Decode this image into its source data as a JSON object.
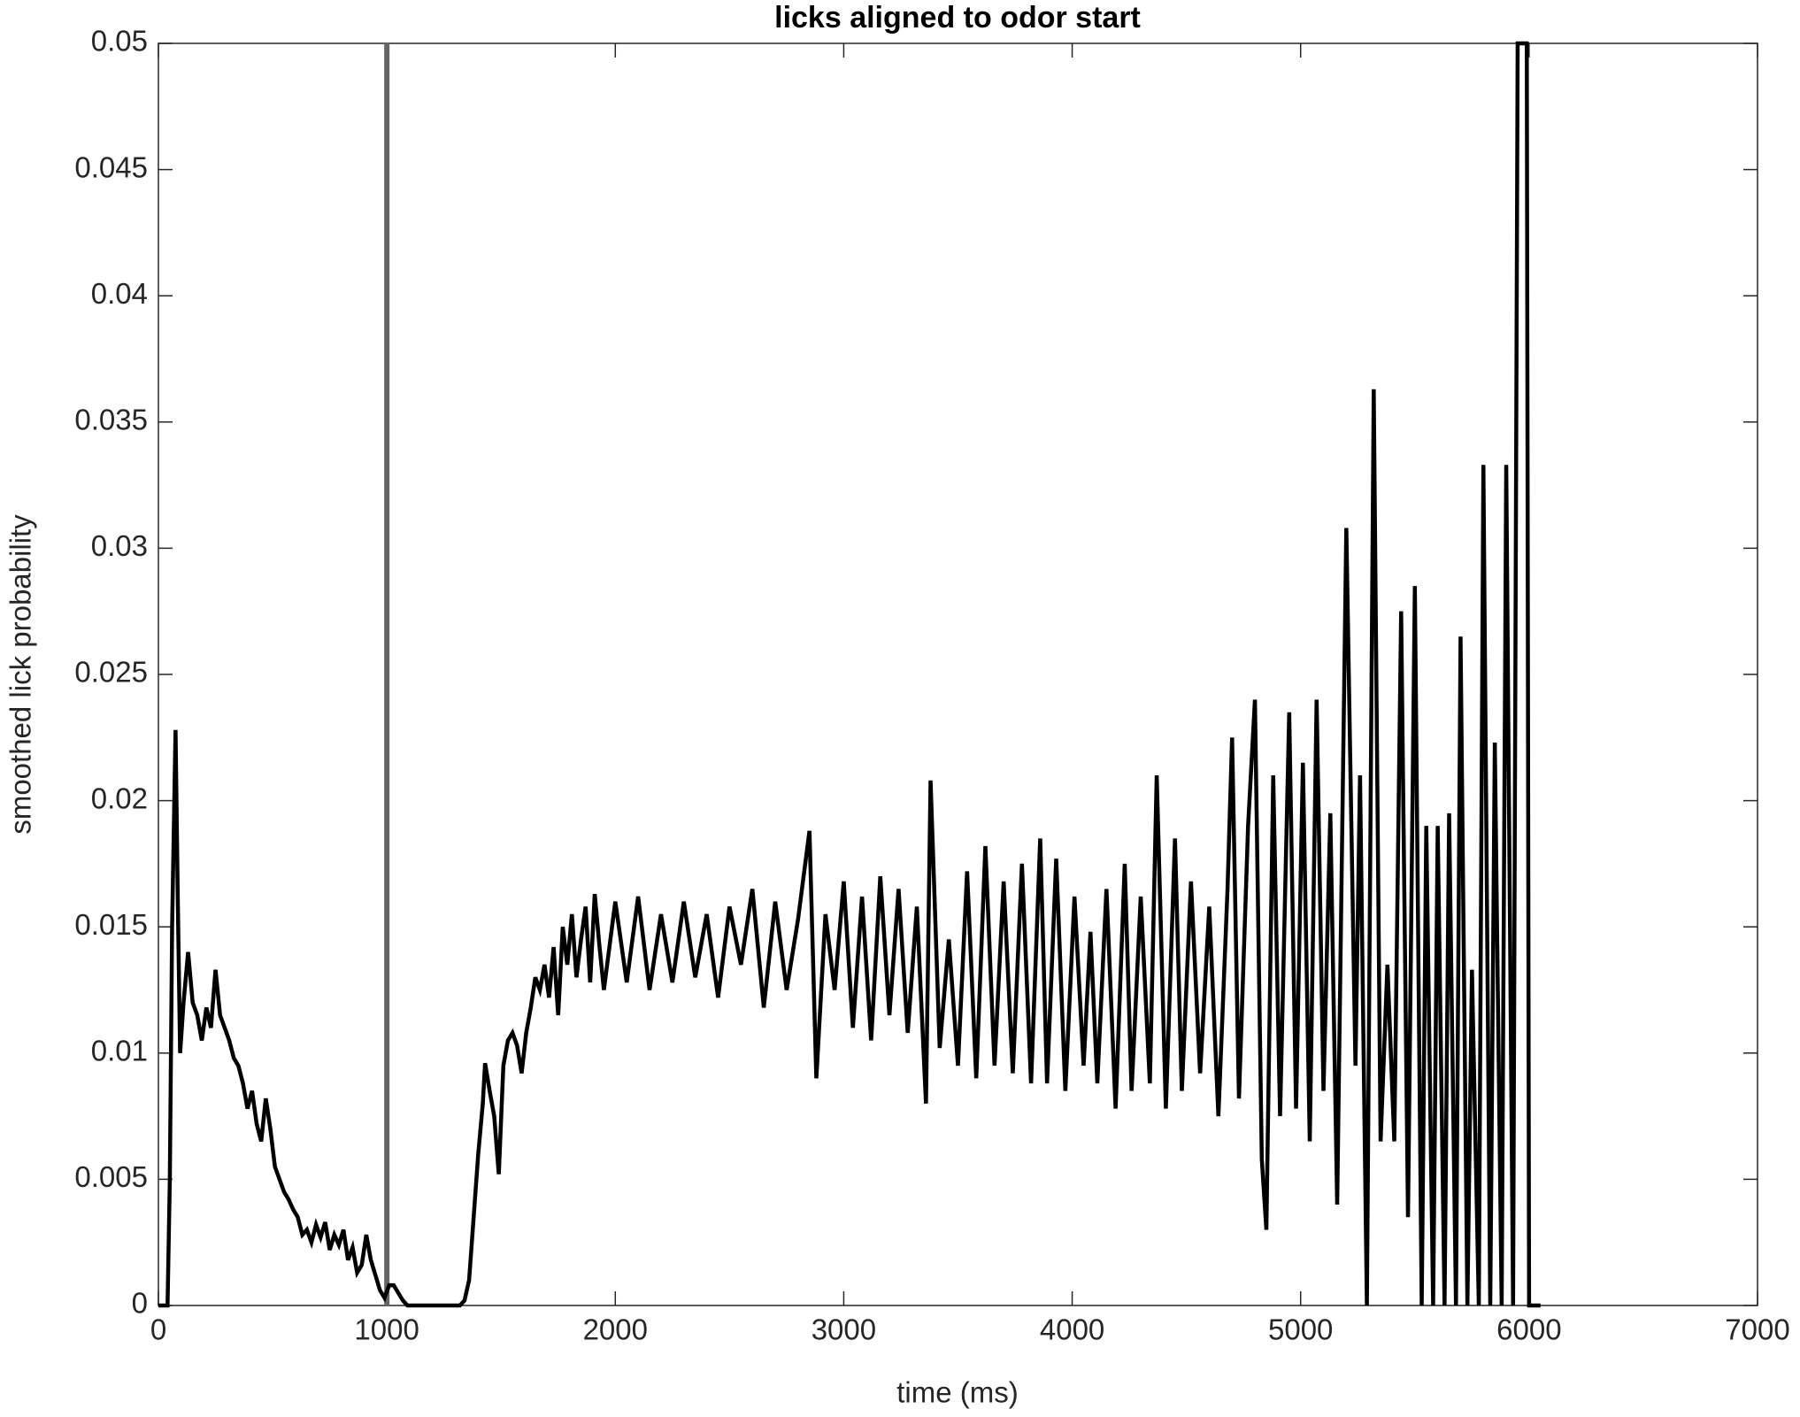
{
  "chart_data": {
    "type": "line",
    "title": "licks aligned to odor start",
    "x_label": "time (ms)",
    "y_label": "smoothed lick probability",
    "xlim": [
      0,
      7000
    ],
    "xticks": [
      0,
      1000,
      2000,
      3000,
      4000,
      5000,
      6000,
      7000
    ],
    "ylim": [
      0,
      0.05
    ],
    "yticks": [
      0,
      0.005,
      0.01,
      0.015,
      0.02,
      0.025,
      0.03,
      0.035,
      0.04,
      0.045,
      0.05
    ],
    "vline_x": 1000,
    "vline_color": "#666666",
    "x": [
      0,
      40,
      50,
      60,
      75,
      85,
      95,
      110,
      130,
      150,
      170,
      190,
      210,
      230,
      250,
      270,
      290,
      310,
      330,
      350,
      370,
      390,
      410,
      430,
      450,
      470,
      490,
      510,
      530,
      550,
      570,
      590,
      610,
      630,
      650,
      670,
      690,
      710,
      730,
      750,
      770,
      790,
      810,
      830,
      850,
      870,
      890,
      910,
      930,
      950,
      970,
      990,
      1010,
      1030,
      1050,
      1070,
      1090,
      1320,
      1340,
      1360,
      1380,
      1400,
      1420,
      1430,
      1450,
      1470,
      1490,
      1510,
      1530,
      1550,
      1570,
      1590,
      1610,
      1630,
      1650,
      1670,
      1690,
      1710,
      1730,
      1750,
      1770,
      1790,
      1810,
      1830,
      1850,
      1870,
      1890,
      1910,
      1930,
      1950,
      2000,
      2050,
      2100,
      2150,
      2200,
      2250,
      2300,
      2350,
      2400,
      2450,
      2500,
      2550,
      2600,
      2650,
      2700,
      2750,
      2800,
      2850,
      2880,
      2920,
      2960,
      3000,
      3040,
      3080,
      3120,
      3160,
      3200,
      3240,
      3280,
      3320,
      3360,
      3380,
      3420,
      3460,
      3500,
      3540,
      3580,
      3620,
      3660,
      3700,
      3740,
      3780,
      3820,
      3860,
      3890,
      3930,
      3970,
      4010,
      4050,
      4080,
      4110,
      4150,
      4190,
      4230,
      4260,
      4300,
      4340,
      4370,
      4410,
      4450,
      4480,
      4520,
      4560,
      4600,
      4640,
      4680,
      4700,
      4730,
      4770,
      4800,
      4830,
      4850,
      4880,
      4910,
      4950,
      4980,
      5010,
      5040,
      5070,
      5100,
      5130,
      5160,
      5200,
      5240,
      5260,
      5290,
      5320,
      5350,
      5380,
      5410,
      5440,
      5470,
      5500,
      5530,
      5550,
      5580,
      5600,
      5630,
      5650,
      5680,
      5700,
      5730,
      5750,
      5780,
      5800,
      5830,
      5850,
      5880,
      5900,
      5930,
      5950,
      5990,
      6000,
      6050
    ],
    "series": [
      {
        "name": "smoothed lick probability",
        "color": "#000000",
        "values": [
          0,
          0,
          0.005,
          0.015,
          0.0228,
          0.016,
          0.01,
          0.012,
          0.014,
          0.012,
          0.0115,
          0.0105,
          0.0118,
          0.011,
          0.0133,
          0.0115,
          0.011,
          0.0105,
          0.0098,
          0.0095,
          0.0088,
          0.0078,
          0.0085,
          0.0072,
          0.0065,
          0.0082,
          0.007,
          0.0055,
          0.005,
          0.0045,
          0.0042,
          0.0038,
          0.0035,
          0.0028,
          0.003,
          0.0025,
          0.0032,
          0.0027,
          0.0033,
          0.0022,
          0.0028,
          0.0024,
          0.003,
          0.0018,
          0.0023,
          0.0013,
          0.0016,
          0.0028,
          0.0018,
          0.0012,
          0.0006,
          0.0003,
          0.0008,
          0.0008,
          0.0005,
          0.0002,
          0,
          0,
          0.0002,
          0.001,
          0.0035,
          0.006,
          0.008,
          0.0096,
          0.0085,
          0.0075,
          0.0052,
          0.0095,
          0.0105,
          0.0108,
          0.0103,
          0.0092,
          0.0108,
          0.0118,
          0.013,
          0.0125,
          0.0135,
          0.0122,
          0.0142,
          0.0115,
          0.015,
          0.0135,
          0.0155,
          0.013,
          0.0145,
          0.0158,
          0.0128,
          0.0163,
          0.0143,
          0.0125,
          0.016,
          0.0128,
          0.0162,
          0.0125,
          0.0155,
          0.0128,
          0.016,
          0.013,
          0.0155,
          0.0122,
          0.0158,
          0.0135,
          0.0165,
          0.0118,
          0.016,
          0.0125,
          0.0153,
          0.0188,
          0.009,
          0.0155,
          0.0125,
          0.0168,
          0.011,
          0.0162,
          0.0105,
          0.017,
          0.0115,
          0.0165,
          0.0108,
          0.0158,
          0.008,
          0.0208,
          0.0102,
          0.0145,
          0.0095,
          0.0172,
          0.009,
          0.0182,
          0.0095,
          0.0168,
          0.0092,
          0.0175,
          0.0088,
          0.0185,
          0.0088,
          0.0177,
          0.0085,
          0.0162,
          0.0095,
          0.0148,
          0.0088,
          0.0165,
          0.0078,
          0.0175,
          0.0085,
          0.0162,
          0.0088,
          0.021,
          0.0078,
          0.0185,
          0.0085,
          0.0168,
          0.0092,
          0.0158,
          0.0075,
          0.0165,
          0.0225,
          0.0082,
          0.019,
          0.024,
          0.0058,
          0.003,
          0.021,
          0.0075,
          0.0235,
          0.0078,
          0.0215,
          0.0065,
          0.024,
          0.0085,
          0.0195,
          0.004,
          0.0308,
          0.0095,
          0.021,
          0,
          0.0363,
          0.0065,
          0.0135,
          0.0065,
          0.0275,
          0.0035,
          0.0285,
          0,
          0.019,
          0,
          0.019,
          0,
          0.0195,
          0,
          0.0265,
          0,
          0.0133,
          0,
          0.0333,
          0,
          0.0223,
          0,
          0.0333,
          0,
          0.05,
          0.05,
          0,
          0
        ]
      }
    ]
  }
}
